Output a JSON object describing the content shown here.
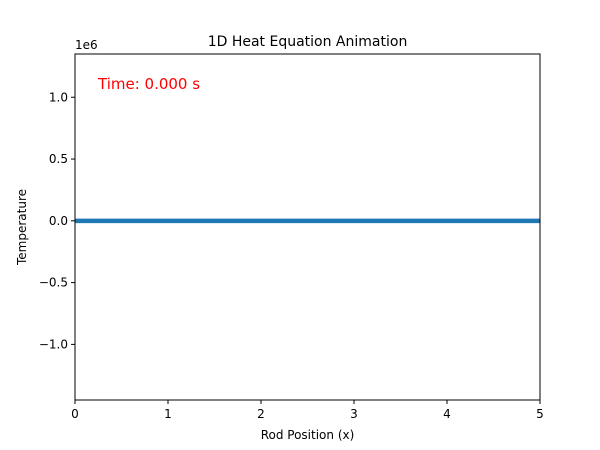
{
  "chart_data": {
    "type": "line",
    "title": "1D Heat Equation Animation",
    "xlabel": "Rod Position (x)",
    "ylabel": "Temperature",
    "xlim": [
      0,
      5
    ],
    "ylim": [
      -1.45,
      1.35
    ],
    "y_offset_text": "1e6",
    "x_ticks": [
      0,
      1,
      2,
      3,
      4,
      5
    ],
    "x_tick_labels": [
      "0",
      "1",
      "2",
      "3",
      "4",
      "5"
    ],
    "y_ticks": [
      -1.0,
      -0.5,
      0.0,
      0.5,
      1.0
    ],
    "y_tick_labels": [
      "−1.0",
      "−0.5",
      "0.0",
      "0.5",
      "1.0"
    ],
    "grid": false,
    "annotation": "Time: 0.000 s",
    "annotation_color": "#ff0000",
    "series": [
      {
        "color": "#1f77b4",
        "x": [
          0,
          0.5,
          1,
          1.5,
          2,
          2.5,
          3,
          3.5,
          4,
          4.5,
          5
        ],
        "values": [
          0,
          0,
          0,
          0,
          0,
          0,
          0,
          0,
          0,
          0,
          0
        ]
      }
    ]
  }
}
